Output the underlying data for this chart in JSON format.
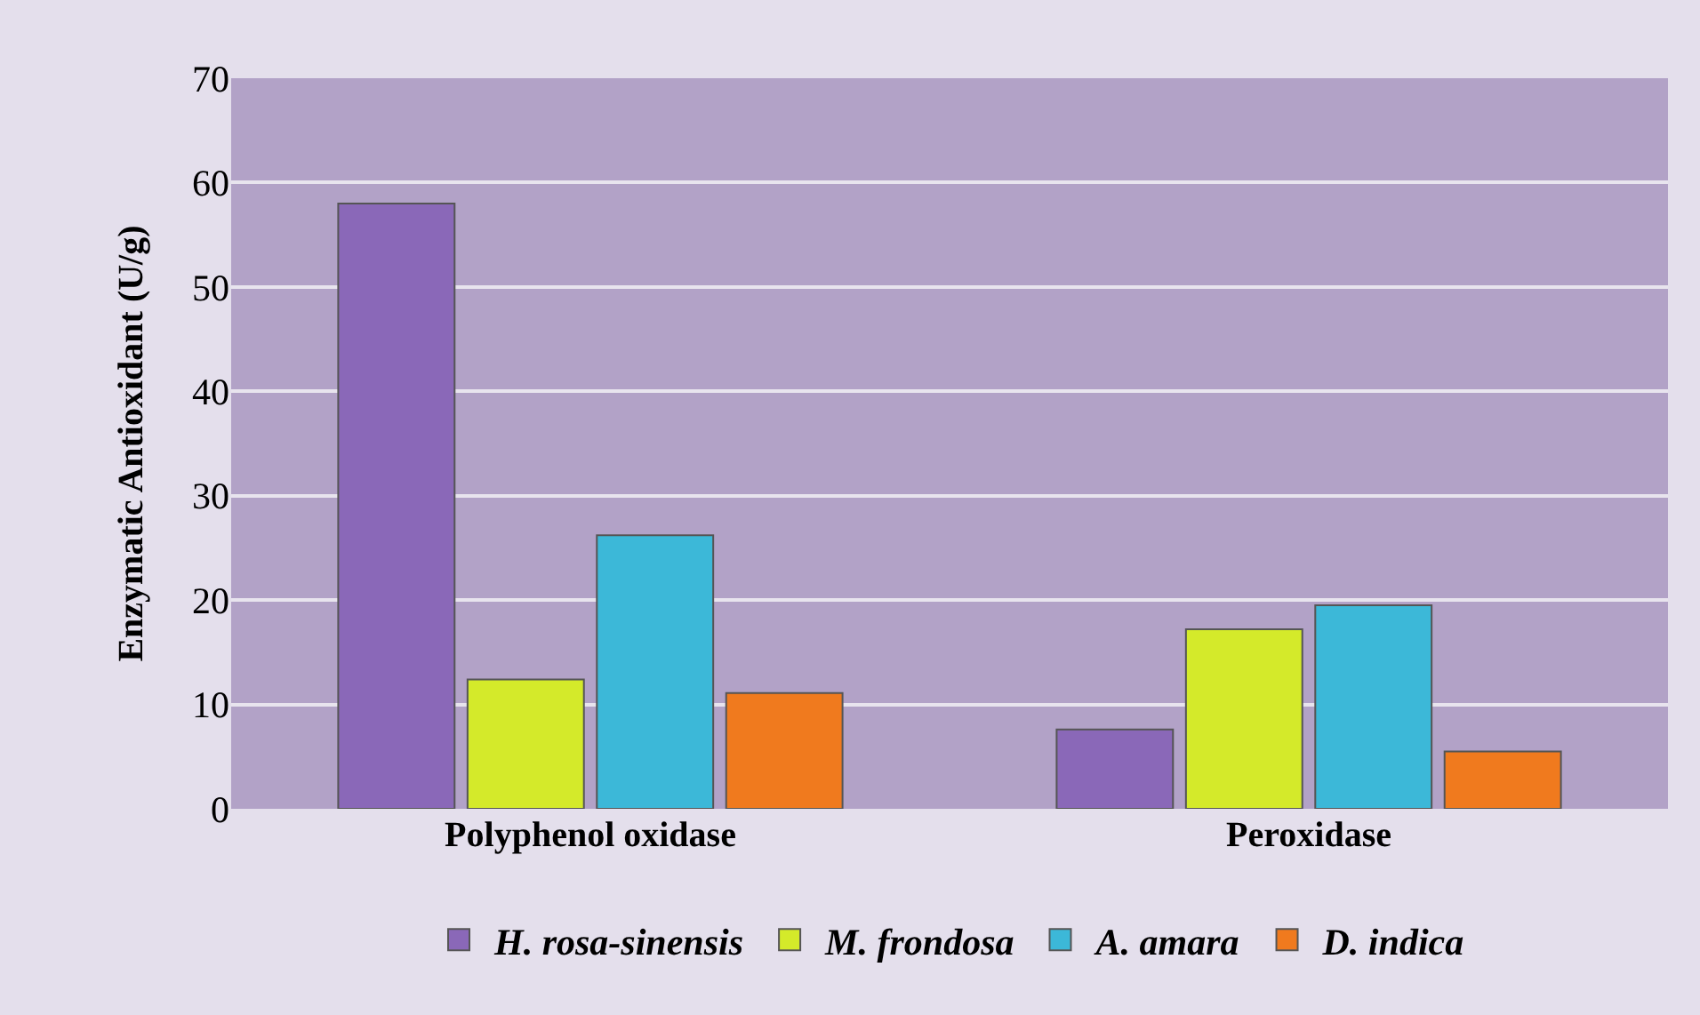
{
  "chart_data": {
    "type": "bar",
    "ylabel": "Enzymatic Antioxidant (U/g)",
    "categories": [
      "Polyphenol oxidase",
      "Peroxidase"
    ],
    "series": [
      {
        "name": "H. rosa-sinensis",
        "color": "#8a68b8",
        "values": [
          58,
          7.6
        ]
      },
      {
        "name": "M. frondosa",
        "color": "#d4ea2a",
        "values": [
          12.4,
          17.2
        ]
      },
      {
        "name": "A. amara",
        "color": "#3cb8d8",
        "values": [
          26.2,
          19.5
        ]
      },
      {
        "name": "D. indica",
        "color": "#f07a1e",
        "values": [
          11.1,
          5.5
        ]
      }
    ],
    "ylim": [
      0,
      70
    ],
    "yticks": [
      0,
      10,
      20,
      30,
      40,
      50,
      60,
      70
    ],
    "grid": "y",
    "legend": "bottom"
  }
}
